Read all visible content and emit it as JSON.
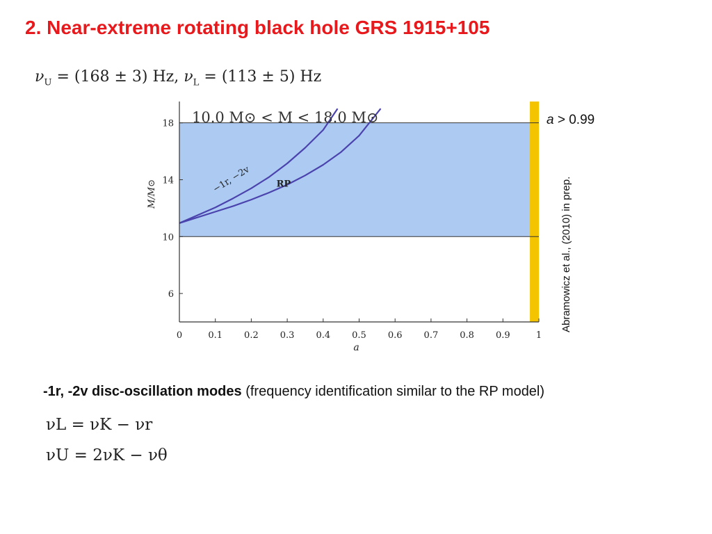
{
  "slide": {
    "title": "2. Near-extreme rotating black hole GRS 1915+105",
    "frequencies": {
      "upper_symbol": "ν",
      "upper_sub": "U",
      "upper_value": "= (168 ± 3) Hz,",
      "lower_symbol": "ν",
      "lower_sub": "L",
      "lower_value": "= (113 ± 5) Hz"
    },
    "condition_var": "a",
    "condition_rest": " > 0.99",
    "reference": "Abramowicz et al., (2010) in prep.",
    "caption_bold": "-1r, -2v disc-oscillation modes",
    "caption_rest": " (frequency identification similar to the RP model)",
    "eq_lower": "νL = νK − νr",
    "eq_upper": "νU = 2νK − νθ"
  },
  "chart_data": {
    "type": "line",
    "xlabel": "a",
    "ylabel": "M/M⊙",
    "xlim": [
      0,
      1
    ],
    "ylim": [
      4,
      19.5
    ],
    "xticks": [
      0,
      0.1,
      0.2,
      0.3,
      0.4,
      0.5,
      0.6,
      0.7,
      0.8,
      0.9,
      1
    ],
    "xtick_labels": [
      "0",
      "0.1",
      "0.2",
      "0.3",
      "0.4",
      "0.5",
      "0.6",
      "0.7",
      "0.8",
      "0.9",
      "1"
    ],
    "yticks": [
      6,
      10,
      14,
      18
    ],
    "ytick_labels": [
      "6",
      "10",
      "14",
      "18"
    ],
    "mass_band": {
      "label": "10.0 M⊙ < M < 18.0 M⊙",
      "ymin": 10,
      "ymax": 18,
      "color": "#adcbf2"
    },
    "spin_band": {
      "xmin": 0.975,
      "xmax": 1.0,
      "color": "#f5c400"
    },
    "series": [
      {
        "name": "−1r, −2v",
        "color": "#4b43ad",
        "x": [
          0,
          0.05,
          0.1,
          0.15,
          0.2,
          0.25,
          0.3,
          0.35,
          0.4,
          0.44
        ],
        "y": [
          10.95,
          11.5,
          12.05,
          12.7,
          13.4,
          14.2,
          15.15,
          16.25,
          17.5,
          19.0
        ]
      },
      {
        "name": "RP",
        "color": "#4b43ad",
        "x": [
          0,
          0.05,
          0.1,
          0.15,
          0.2,
          0.25,
          0.3,
          0.35,
          0.4,
          0.45,
          0.5,
          0.56
        ],
        "y": [
          10.95,
          11.35,
          11.75,
          12.15,
          12.6,
          13.1,
          13.65,
          14.3,
          15.05,
          15.95,
          17.1,
          19.0
        ]
      }
    ]
  }
}
